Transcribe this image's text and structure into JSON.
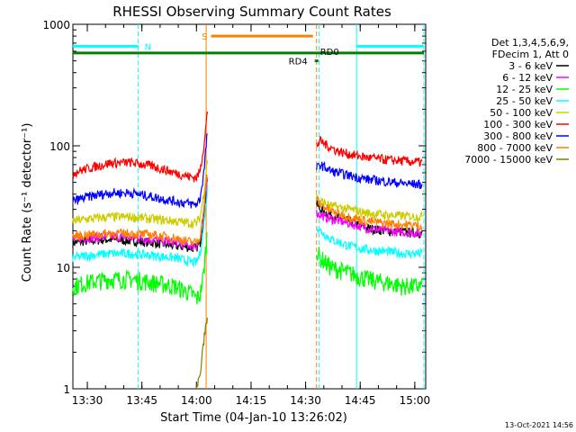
{
  "chart_data": {
    "type": "line",
    "title": "RHESSI Observing Summary Count Rates",
    "xlabel": "Start Time (04-Jan-10 13:26:02)",
    "ylabel": "Count Rate (s⁻¹ detector⁻¹)",
    "timestamp": "13-Oct-2021 14:56",
    "yscale": "log",
    "ylim": [
      1,
      1000
    ],
    "xlim": [
      "13:26:02",
      "15:03:00"
    ],
    "x_ticks": [
      "13:30",
      "13:45",
      "14:00",
      "14:15",
      "14:30",
      "14:45",
      "15:00"
    ],
    "y_ticks": [
      "1",
      "10",
      "100",
      "1000"
    ],
    "legend": {
      "placement": "right",
      "header": [
        "Det 1,3,4,5,6,9,",
        "FDecim 1, Att 0"
      ]
    },
    "gap": [
      "14:04",
      "14:33"
    ],
    "series": [
      {
        "name": "3 - 6 keV",
        "color": "#000000",
        "before": {
          "x": [
            "13:26",
            "13:30",
            "13:36",
            "13:42",
            "13:48",
            "13:54",
            "13:59",
            "14:00",
            "14:01",
            "14:02",
            "14:03"
          ],
          "y": [
            16,
            16.5,
            17,
            16.5,
            16,
            15,
            14.5,
            14.5,
            16,
            26,
            55
          ]
        },
        "after": {
          "x": [
            "14:33",
            "14:34",
            "14:37",
            "14:42",
            "14:47",
            "14:52",
            "14:57",
            "15:02"
          ],
          "y": [
            33,
            30,
            27,
            24,
            21,
            20,
            19.5,
            19
          ]
        }
      },
      {
        "name": "6 - 12 keV",
        "color": "#ff00ff",
        "before": {
          "x": [
            "13:26",
            "13:30",
            "13:36",
            "13:42",
            "13:48",
            "13:54",
            "13:59",
            "14:00",
            "14:01",
            "14:02",
            "14:03"
          ],
          "y": [
            17,
            17.5,
            18,
            17.5,
            17,
            16,
            15,
            15,
            17,
            28,
            60
          ]
        },
        "after": {
          "x": [
            "14:33",
            "14:34",
            "14:37",
            "14:42",
            "14:47",
            "14:52",
            "14:57",
            "15:02"
          ],
          "y": [
            28,
            27,
            25,
            23,
            21,
            20,
            19.5,
            19
          ]
        }
      },
      {
        "name": "12 - 25 keV",
        "color": "#00ff00",
        "before": {
          "x": [
            "13:26",
            "13:30",
            "13:36",
            "13:42",
            "13:48",
            "13:54",
            "13:59",
            "14:00",
            "14:01",
            "14:02",
            "14:03"
          ],
          "y": [
            7,
            7.5,
            8,
            8,
            7.5,
            7,
            6,
            5.5,
            6,
            9,
            20
          ]
        },
        "after": {
          "x": [
            "14:33",
            "14:34",
            "14:37",
            "14:42",
            "14:47",
            "14:52",
            "14:57",
            "15:02"
          ],
          "y": [
            14,
            12,
            10,
            9,
            8,
            7.5,
            7,
            7
          ]
        }
      },
      {
        "name": "25 - 50 keV",
        "color": "#00ffff",
        "before": {
          "x": [
            "13:26",
            "13:30",
            "13:36",
            "13:42",
            "13:48",
            "13:54",
            "13:59",
            "14:00",
            "14:01",
            "14:02",
            "14:03"
          ],
          "y": [
            12,
            12.5,
            13,
            13,
            12.5,
            12,
            11,
            11,
            13,
            22,
            45
          ]
        },
        "after": {
          "x": [
            "14:33",
            "14:34",
            "14:37",
            "14:42",
            "14:47",
            "14:52",
            "14:57",
            "15:02"
          ],
          "y": [
            22,
            20,
            17,
            15,
            14,
            13.5,
            13,
            13
          ]
        }
      },
      {
        "name": "50 - 100 keV",
        "color": "#cccc00",
        "before": {
          "x": [
            "13:26",
            "13:30",
            "13:36",
            "13:42",
            "13:48",
            "13:54",
            "13:59",
            "14:00",
            "14:01",
            "14:02",
            "14:03"
          ],
          "y": [
            24,
            25,
            26,
            26,
            25,
            24,
            23,
            23,
            26,
            40,
            80
          ]
        },
        "after": {
          "x": [
            "14:33",
            "14:34",
            "14:37",
            "14:42",
            "14:47",
            "14:52",
            "14:57",
            "15:02"
          ],
          "y": [
            38,
            35,
            32,
            30,
            28,
            27,
            26.5,
            26
          ]
        }
      },
      {
        "name": "100 - 300 keV",
        "color": "#ff0000",
        "before": {
          "x": [
            "13:26",
            "13:30",
            "13:36",
            "13:42",
            "13:48",
            "13:54",
            "13:59",
            "14:00",
            "14:01",
            "14:02",
            "14:03"
          ],
          "y": [
            60,
            65,
            72,
            73,
            68,
            60,
            55,
            55,
            62,
            100,
            190
          ]
        },
        "after": {
          "x": [
            "14:33",
            "14:34",
            "14:36",
            "14:39",
            "14:43",
            "14:47",
            "14:52",
            "14:57",
            "15:02"
          ],
          "y": [
            100,
            110,
            100,
            90,
            84,
            80,
            77,
            75,
            73
          ]
        }
      },
      {
        "name": "300 - 800 keV",
        "color": "#0000ff",
        "before": {
          "x": [
            "13:26",
            "13:30",
            "13:36",
            "13:42",
            "13:48",
            "13:54",
            "13:59",
            "14:00",
            "14:01",
            "14:02",
            "14:03"
          ],
          "y": [
            35,
            38,
            41,
            41,
            38,
            35,
            33,
            33,
            37,
            60,
            130
          ]
        },
        "after": {
          "x": [
            "14:33",
            "14:34",
            "14:37",
            "14:42",
            "14:47",
            "14:52",
            "14:57",
            "15:02"
          ],
          "y": [
            65,
            70,
            62,
            57,
            53,
            51,
            49,
            48
          ]
        }
      },
      {
        "name": "800 - 7000 keV",
        "color": "#ff8000",
        "before": {
          "x": [
            "13:26",
            "13:30",
            "13:36",
            "13:42",
            "13:48",
            "13:54",
            "13:59",
            "14:00",
            "14:01",
            "14:02",
            "14:03"
          ],
          "y": [
            18,
            18.5,
            19,
            19,
            18.5,
            17.5,
            16,
            16,
            18,
            30,
            62
          ]
        },
        "after": {
          "x": [
            "14:33",
            "14:34",
            "14:37",
            "14:42",
            "14:47",
            "14:52",
            "14:57",
            "15:02"
          ],
          "y": [
            36,
            33,
            29,
            26,
            24,
            23,
            22.5,
            22
          ]
        }
      },
      {
        "name": "7000 - 15000 keV",
        "color": "#808000",
        "before": {
          "x": [
            "14:00",
            "14:01",
            "14:02",
            "14:03"
          ],
          "y": [
            1,
            1.3,
            2.5,
            4
          ]
        },
        "after": {
          "x": [],
          "y": []
        }
      }
    ],
    "annotations": {
      "vlines": [
        {
          "x": "13:44",
          "color": "#00ffff",
          "style": "dashed"
        },
        {
          "x": "14:02:40",
          "color": "#ff8000",
          "style": "solid"
        },
        {
          "x": "14:33",
          "color": "#ff8000",
          "style": "dashed"
        },
        {
          "x": "14:33:40",
          "color": "#00ffff",
          "style": "dashed"
        },
        {
          "x": "14:44",
          "color": "#00ffff",
          "style": "solid"
        },
        {
          "x": "15:02:30",
          "color": "#00ffff",
          "style": "dashed"
        }
      ],
      "bars": [
        {
          "label": "N",
          "color": "#00ffff",
          "y": 660,
          "segments": [
            [
              "13:26",
              "13:44"
            ],
            [
              "14:44",
              "15:02:30"
            ]
          ]
        },
        {
          "label": "S",
          "color": "#ff8000",
          "y": 800,
          "segments": [
            [
              "14:04",
              "14:32"
            ]
          ]
        },
        {
          "label": "RD0",
          "color": "#008000",
          "y": 580,
          "segments": [
            [
              "13:26",
              "15:02:30"
            ]
          ]
        },
        {
          "label": "RD4",
          "color": "#008000",
          "y": 500,
          "segments": [
            [
              "14:32:30",
              "14:33:30"
            ]
          ]
        }
      ]
    }
  }
}
